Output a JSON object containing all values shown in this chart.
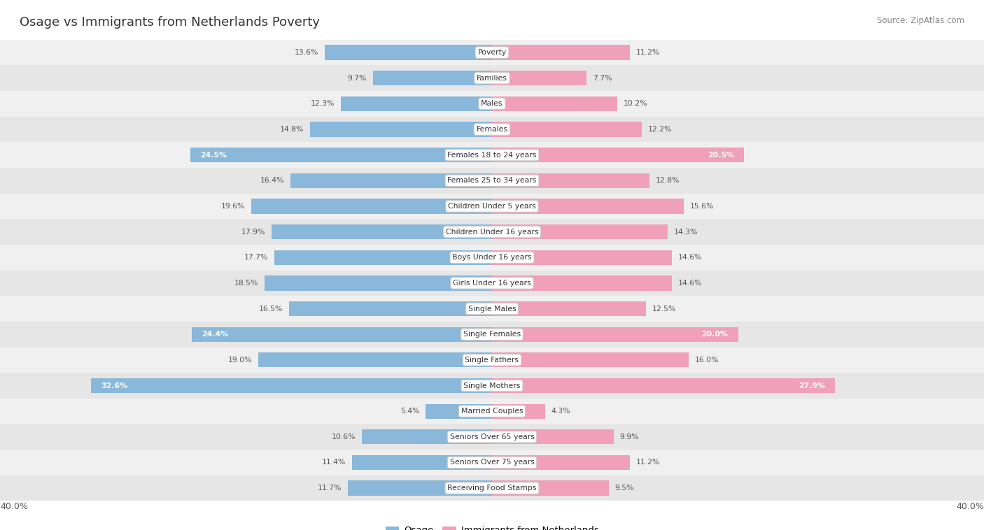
{
  "title": "Osage vs Immigrants from Netherlands Poverty",
  "source": "Source: ZipAtlas.com",
  "categories": [
    "Poverty",
    "Families",
    "Males",
    "Females",
    "Females 18 to 24 years",
    "Females 25 to 34 years",
    "Children Under 5 years",
    "Children Under 16 years",
    "Boys Under 16 years",
    "Girls Under 16 years",
    "Single Males",
    "Single Females",
    "Single Fathers",
    "Single Mothers",
    "Married Couples",
    "Seniors Over 65 years",
    "Seniors Over 75 years",
    "Receiving Food Stamps"
  ],
  "osage_values": [
    13.6,
    9.7,
    12.3,
    14.8,
    24.5,
    16.4,
    19.6,
    17.9,
    17.7,
    18.5,
    16.5,
    24.4,
    19.0,
    32.6,
    5.4,
    10.6,
    11.4,
    11.7
  ],
  "netherlands_values": [
    11.2,
    7.7,
    10.2,
    12.2,
    20.5,
    12.8,
    15.6,
    14.3,
    14.6,
    14.6,
    12.5,
    20.0,
    16.0,
    27.9,
    4.3,
    9.9,
    11.2,
    9.5
  ],
  "osage_color": "#89b8db",
  "netherlands_color": "#f0a0b8",
  "label_color_dark": "#555555",
  "label_color_light": "#ffffff",
  "highlight_threshold": 20.0,
  "x_max": 40.0,
  "bar_height": 0.58,
  "row_colors": [
    "#f0f0f0",
    "#e6e6e6"
  ],
  "background_color": "#ffffff",
  "legend_osage": "Osage",
  "legend_netherlands": "Immigrants from Netherlands"
}
